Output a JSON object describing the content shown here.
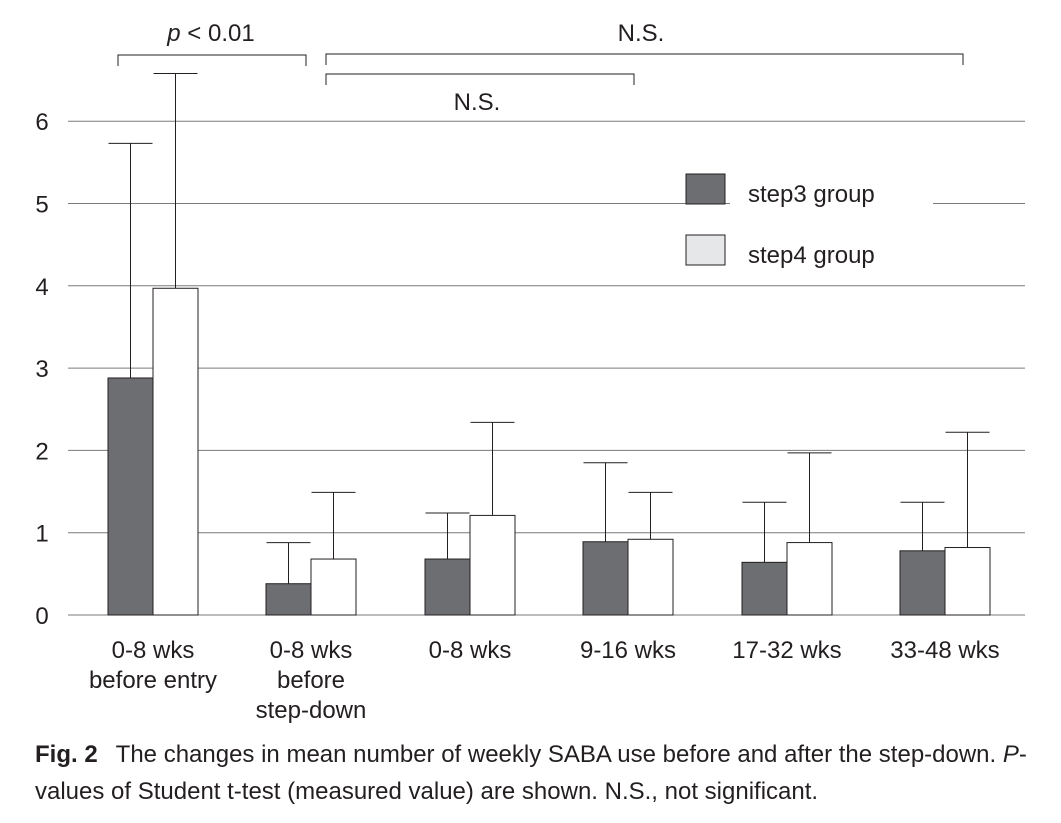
{
  "chart_data": {
    "type": "bar",
    "categories": [
      [
        "0-8 wks",
        "before entry"
      ],
      [
        "0-8 wks",
        "before",
        "step-down"
      ],
      [
        "0-8 wks"
      ],
      [
        "9-16 wks"
      ],
      [
        "17-32 wks"
      ],
      [
        "33-48 wks"
      ]
    ],
    "series": [
      {
        "name": "step3 group",
        "color": "#6d6e71",
        "values": [
          2.88,
          0.38,
          0.68,
          0.89,
          0.64,
          0.78
        ],
        "error_upper": [
          5.73,
          0.88,
          1.24,
          1.85,
          1.37,
          1.37
        ]
      },
      {
        "name": "step4 group",
        "color": "#ffffff",
        "legend_color": "#e6e7e8",
        "values": [
          3.97,
          0.68,
          1.21,
          0.92,
          0.88,
          0.82
        ],
        "error_upper": [
          6.58,
          1.49,
          2.34,
          1.49,
          1.97,
          2.22
        ]
      }
    ],
    "ylim": [
      0,
      6
    ],
    "yticks": [
      "0",
      "1",
      "2",
      "3",
      "4",
      "5",
      "6"
    ],
    "grid": true,
    "legend_position": "top-right",
    "annotations": [
      {
        "label_italic": "p",
        "label": " < 0.01",
        "from_category": 0,
        "to_category": 1
      },
      {
        "label": "N.S.",
        "from_category": 1,
        "to_category": 5
      },
      {
        "label": "N.S.",
        "from_category": 1,
        "to_category": 3
      }
    ]
  },
  "caption": {
    "fig_label": "Fig. 2",
    "text_1": "The changes in mean number of weekly SABA use before and after the step-down. ",
    "p_italic": "P",
    "text_2": "-values of Student t-test (measured value) are shown. N.S., not significant."
  }
}
